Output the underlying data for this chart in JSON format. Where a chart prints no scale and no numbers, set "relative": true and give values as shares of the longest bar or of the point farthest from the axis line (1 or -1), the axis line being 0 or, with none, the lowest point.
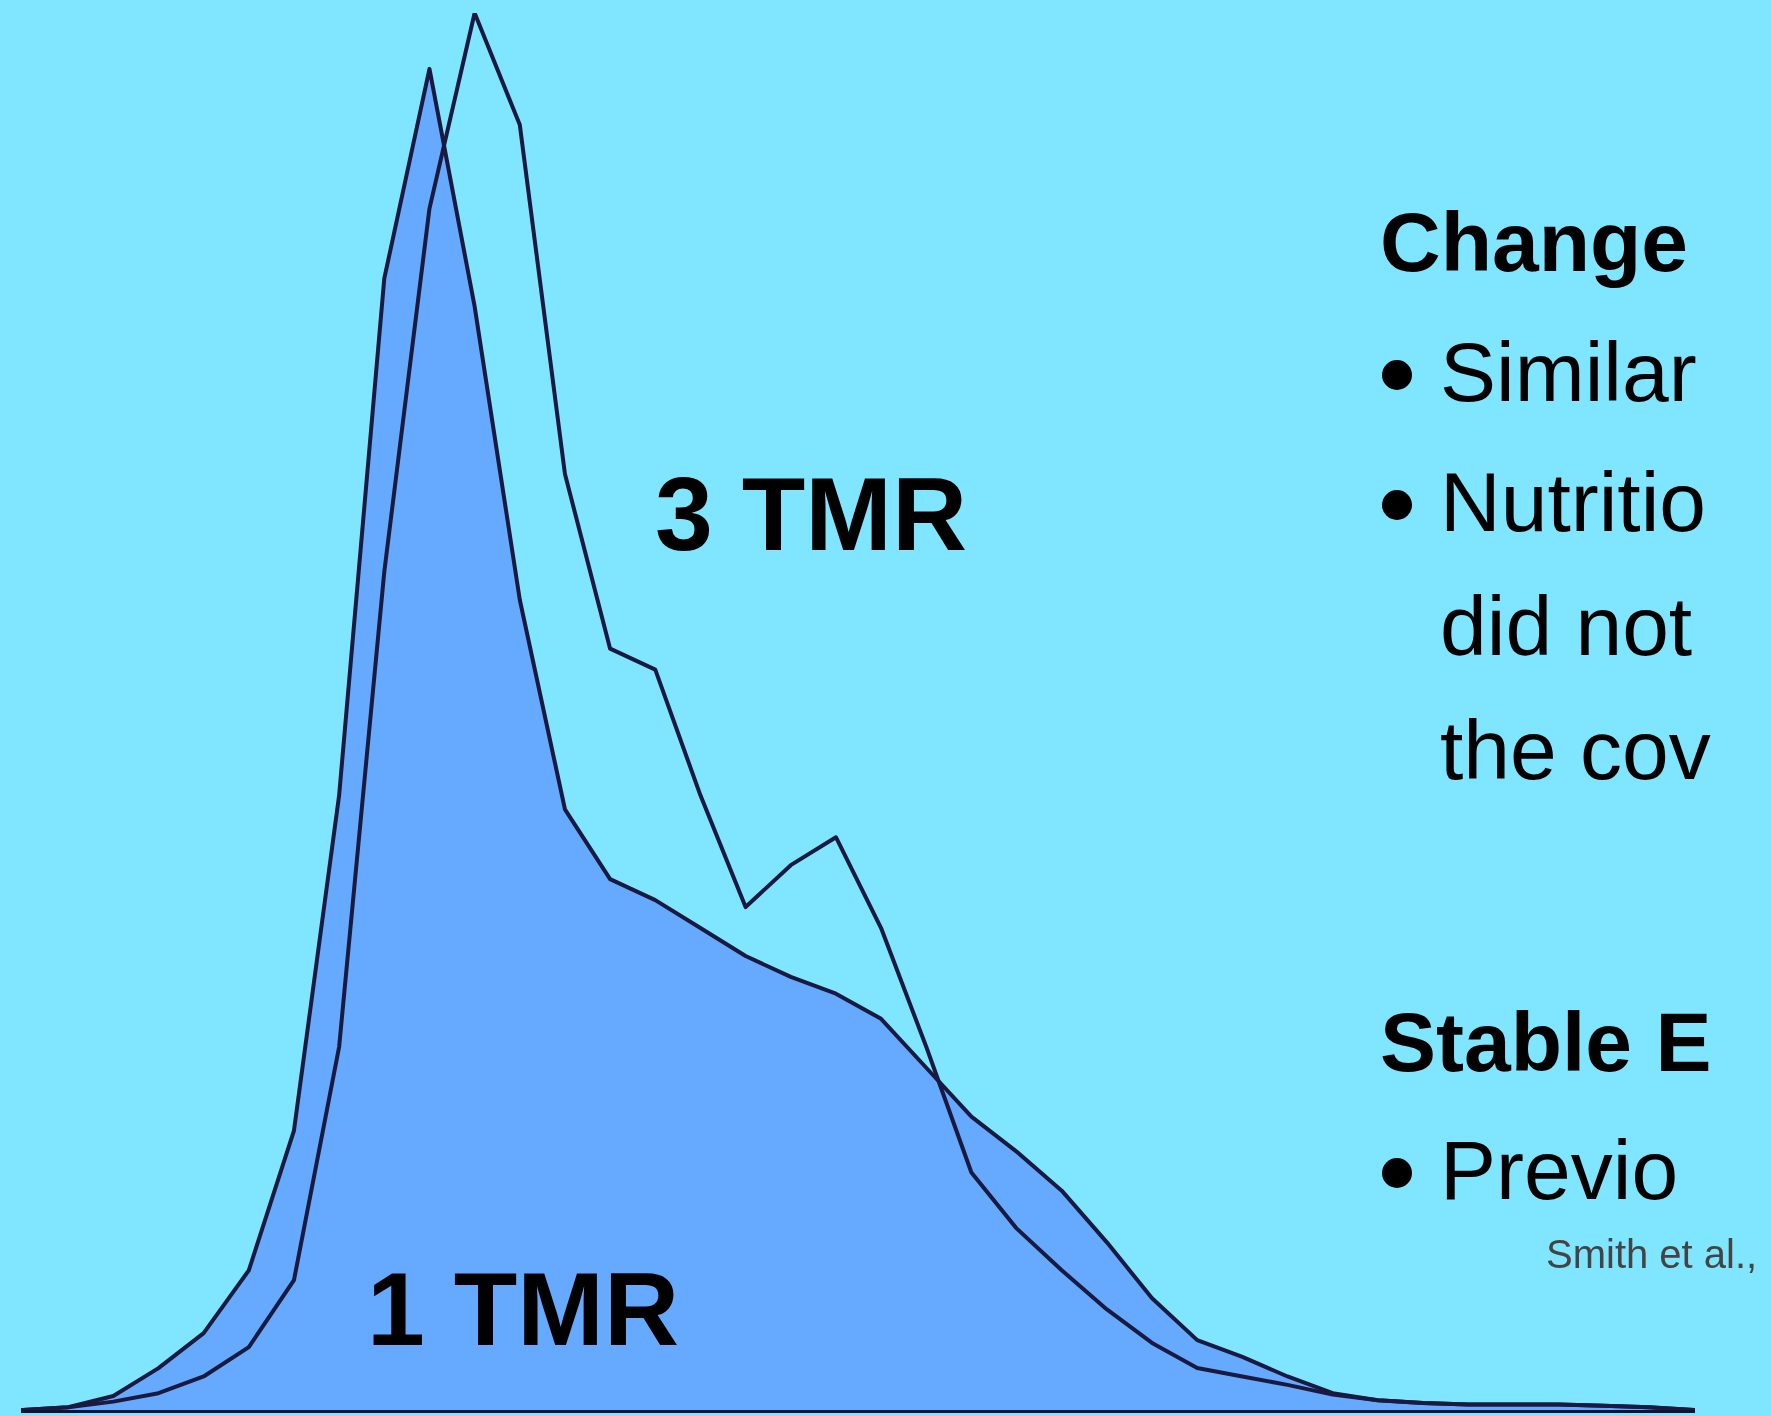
{
  "chart_data": {
    "type": "area",
    "relative": true,
    "categories": [
      null,
      null,
      null,
      null,
      null,
      null,
      null,
      null,
      null,
      null,
      null,
      null,
      null,
      null,
      null,
      null,
      null,
      null,
      null,
      null,
      null,
      null,
      null,
      null,
      null,
      null,
      null,
      null,
      null,
      null,
      null,
      null,
      null,
      null,
      null,
      null,
      null,
      null
    ],
    "series": [
      {
        "name": "1 TMR",
        "type": "area",
        "color": "#66aaff",
        "values": [
          0,
          0.002,
          0.01,
          0.03,
          0.055,
          0.1,
          0.2,
          0.44,
          0.81,
          0.96,
          0.79,
          0.58,
          0.43,
          0.38,
          0.365,
          0.345,
          0.325,
          0.31,
          0.298,
          0.28,
          0.245,
          0.21,
          0.185,
          0.157,
          0.12,
          0.08,
          0.05,
          0.038,
          0.024,
          0.012,
          0.007,
          0.005,
          0.004,
          0.004,
          0.004,
          0.003,
          0.002,
          0
        ]
      },
      {
        "name": "3 TMR",
        "type": "line",
        "color": "#1a1a40",
        "values": [
          0,
          0.002,
          0.006,
          0.012,
          0.024,
          0.045,
          0.093,
          0.26,
          0.6,
          0.86,
          1,
          0.92,
          0.67,
          0.545,
          0.53,
          0.44,
          0.36,
          0.39,
          0.41,
          0.345,
          0.26,
          0.17,
          0.13,
          0.1,
          0.072,
          0.048,
          0.03,
          0.024,
          0.018,
          0.011,
          0.007,
          0.005,
          0.004,
          0.004,
          0.004,
          0.003,
          0.002,
          0
        ]
      }
    ],
    "annotations": [
      "Change",
      "Similar",
      "Nutritio",
      "did not",
      "the cov",
      "Stable E",
      "Previo",
      "Smith et al.,"
    ],
    "legend": false,
    "grid": false,
    "marker": "none"
  }
}
